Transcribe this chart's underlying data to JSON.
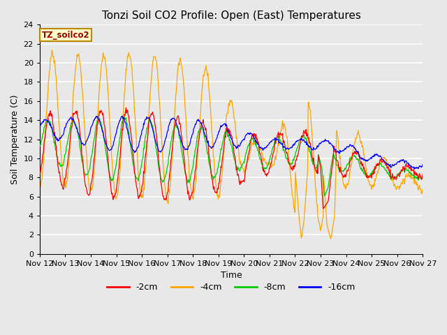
{
  "title": "Tonzi Soil CO2 Profile: Open (East) Temperatures",
  "xlabel": "Time",
  "ylabel": "Soil Temperature (C)",
  "ylim": [
    0,
    24
  ],
  "background_color": "#e8e8e8",
  "grid_color": "white",
  "colors": {
    "-2cm": "#ff0000",
    "-4cm": "#ffa500",
    "-8cm": "#00cc00",
    "-16cm": "#0000ff"
  },
  "legend_label": "TZ_soilco2",
  "x_tick_labels": [
    "Nov 12",
    "Nov 13",
    "Nov 14",
    "Nov 15",
    "Nov 16",
    "Nov 17",
    "Nov 18",
    "Nov 19",
    "Nov 20",
    "Nov 21",
    "Nov 22",
    "Nov 23",
    "Nov 24",
    "Nov 25",
    "Nov 26",
    "Nov 27"
  ],
  "series_labels": [
    "-2cm",
    "-4cm",
    "-8cm",
    "-16cm"
  ]
}
